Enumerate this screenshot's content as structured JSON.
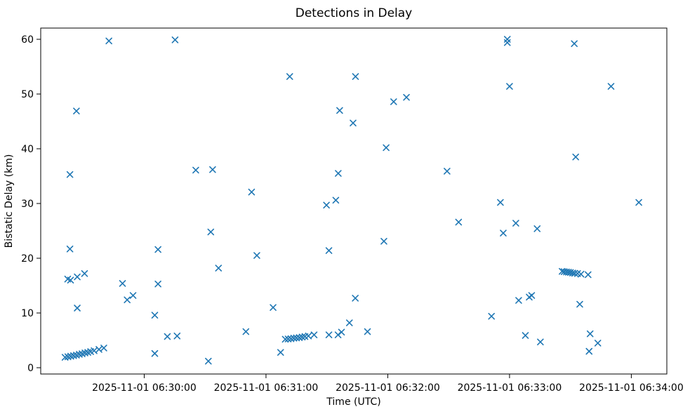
{
  "chart_data": {
    "type": "scatter",
    "title": "Detections in Delay",
    "xlabel": "Time (UTC)",
    "ylabel": "Bistatic Delay (km)",
    "marker": "x",
    "marker_color": "#1f77b4",
    "axis_color": "#000000",
    "background_color": "#ffffff",
    "legend": "none",
    "grid": false,
    "x_axis": {
      "unit": "seconds after 2025-11-01 06:29:00 UTC",
      "range_seconds": [
        9,
        317.5
      ],
      "tick_seconds": [
        60,
        120,
        180,
        240,
        300
      ],
      "tick_labels": [
        "2025-11-01 06:30:00",
        "2025-11-01 06:31:00",
        "2025-11-01 06:32:00",
        "2025-11-01 06:33:00",
        "2025-11-01 06:34:00"
      ]
    },
    "y_axis": {
      "unit": "km",
      "range": [
        -1.15,
        62.05
      ],
      "ticks": [
        0,
        10,
        20,
        30,
        40,
        50,
        60
      ]
    },
    "points": [
      [
        42.6,
        59.7
      ],
      [
        75.2,
        59.9
      ],
      [
        26.6,
        46.9
      ],
      [
        131.7,
        53.2
      ],
      [
        164.1,
        53.2
      ],
      [
        156.3,
        47.0
      ],
      [
        162.9,
        44.7
      ],
      [
        238.9,
        60.0
      ],
      [
        238.9,
        59.4
      ],
      [
        240.0,
        51.4
      ],
      [
        189.2,
        49.4
      ],
      [
        182.9,
        48.6
      ],
      [
        179.2,
        40.2
      ],
      [
        271.9,
        59.2
      ],
      [
        290.0,
        51.4
      ],
      [
        23.4,
        35.3
      ],
      [
        85.4,
        36.1
      ],
      [
        93.7,
        36.2
      ],
      [
        112.9,
        32.1
      ],
      [
        155.6,
        35.5
      ],
      [
        154.4,
        30.6
      ],
      [
        149.8,
        29.7
      ],
      [
        92.8,
        24.8
      ],
      [
        115.5,
        20.5
      ],
      [
        151.0,
        21.4
      ],
      [
        23.4,
        21.7
      ],
      [
        66.8,
        21.6
      ],
      [
        209.2,
        35.9
      ],
      [
        235.5,
        30.2
      ],
      [
        214.9,
        26.6
      ],
      [
        243.1,
        26.4
      ],
      [
        236.9,
        24.6
      ],
      [
        178.1,
        23.1
      ],
      [
        272.6,
        38.5
      ],
      [
        303.7,
        30.2
      ],
      [
        253.6,
        25.4
      ],
      [
        96.6,
        18.2
      ],
      [
        123.5,
        11.0
      ],
      [
        164.0,
        12.7
      ],
      [
        161.1,
        8.2
      ],
      [
        110.1,
        6.6
      ],
      [
        127.2,
        2.8
      ],
      [
        91.6,
        1.2
      ],
      [
        170.0,
        6.6
      ],
      [
        231.1,
        9.4
      ],
      [
        22.3,
        16.2
      ],
      [
        23.7,
        16.0
      ],
      [
        27.0,
        16.6
      ],
      [
        30.6,
        17.2
      ],
      [
        49.3,
        15.4
      ],
      [
        66.8,
        15.3
      ],
      [
        54.5,
        13.2
      ],
      [
        51.6,
        12.4
      ],
      [
        27.0,
        10.9
      ],
      [
        65.2,
        9.6
      ],
      [
        71.4,
        5.7
      ],
      [
        76.2,
        5.8
      ],
      [
        65.2,
        2.6
      ],
      [
        21.0,
        1.9
      ],
      [
        22.4,
        2.0
      ],
      [
        23.8,
        2.1
      ],
      [
        25.2,
        2.2
      ],
      [
        26.6,
        2.3
      ],
      [
        28.0,
        2.45
      ],
      [
        29.4,
        2.55
      ],
      [
        30.8,
        2.7
      ],
      [
        32.2,
        2.8
      ],
      [
        33.6,
        2.95
      ],
      [
        35.3,
        3.1
      ],
      [
        37.7,
        3.35
      ],
      [
        40.1,
        3.6
      ],
      [
        129.5,
        5.2
      ],
      [
        130.9,
        5.25
      ],
      [
        132.3,
        5.3
      ],
      [
        133.7,
        5.4
      ],
      [
        135.0,
        5.45
      ],
      [
        136.4,
        5.5
      ],
      [
        137.8,
        5.6
      ],
      [
        139.2,
        5.7
      ],
      [
        140.9,
        5.8
      ],
      [
        143.7,
        6.0
      ],
      [
        151.0,
        6.0
      ],
      [
        155.5,
        6.0
      ],
      [
        157.2,
        6.5
      ],
      [
        279.7,
        6.2
      ],
      [
        283.5,
        4.5
      ],
      [
        279.2,
        3.0
      ],
      [
        247.8,
        5.9
      ],
      [
        255.2,
        4.7
      ],
      [
        244.5,
        12.3
      ],
      [
        249.7,
        12.9
      ],
      [
        250.9,
        13.2
      ],
      [
        274.6,
        11.6
      ],
      [
        265.9,
        17.6
      ],
      [
        266.9,
        17.55
      ],
      [
        268.0,
        17.5
      ],
      [
        269.0,
        17.45
      ],
      [
        270.0,
        17.4
      ],
      [
        271.1,
        17.3
      ],
      [
        272.1,
        17.25
      ],
      [
        273.5,
        17.2
      ],
      [
        275.2,
        17.1
      ],
      [
        278.7,
        17.0
      ]
    ]
  }
}
